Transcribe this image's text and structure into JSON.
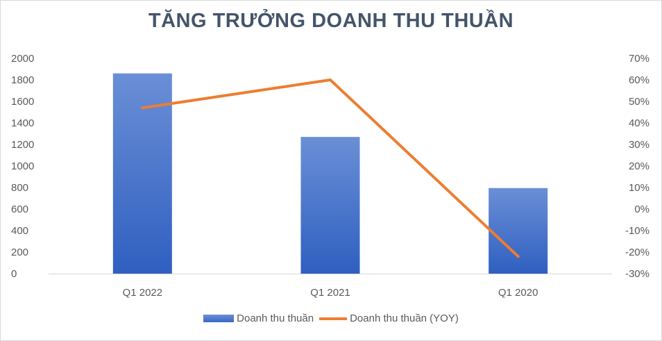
{
  "chart_data": {
    "type": "bar",
    "title": "TĂNG TRƯỞNG DOANH THU THUẦN",
    "categories": [
      "Q1 2022",
      "Q1 2021",
      "Q1 2020"
    ],
    "series": [
      {
        "name": "Doanh thu thuần",
        "type": "bar",
        "axis": "left",
        "values": [
          1860,
          1270,
          795
        ],
        "color": "#4472c4"
      },
      {
        "name": "Doanh thu thuần (YOY)",
        "type": "line",
        "axis": "right",
        "values": [
          0.47,
          0.6,
          -0.22
        ],
        "color": "#ed7d31"
      }
    ],
    "y_left": {
      "ylim": [
        0,
        2000
      ],
      "ticks": [
        "0",
        "200",
        "400",
        "600",
        "800",
        "1000",
        "1200",
        "1400",
        "1600",
        "1800",
        "2000"
      ]
    },
    "y_right": {
      "ylim": [
        -0.3,
        0.7
      ],
      "ticks": [
        "-30%",
        "-20%",
        "-10%",
        "0%",
        "10%",
        "20%",
        "30%",
        "40%",
        "50%",
        "60%",
        "70%"
      ]
    },
    "xlabel": "",
    "ylabel": "",
    "grid": false,
    "legend": "bottom"
  }
}
